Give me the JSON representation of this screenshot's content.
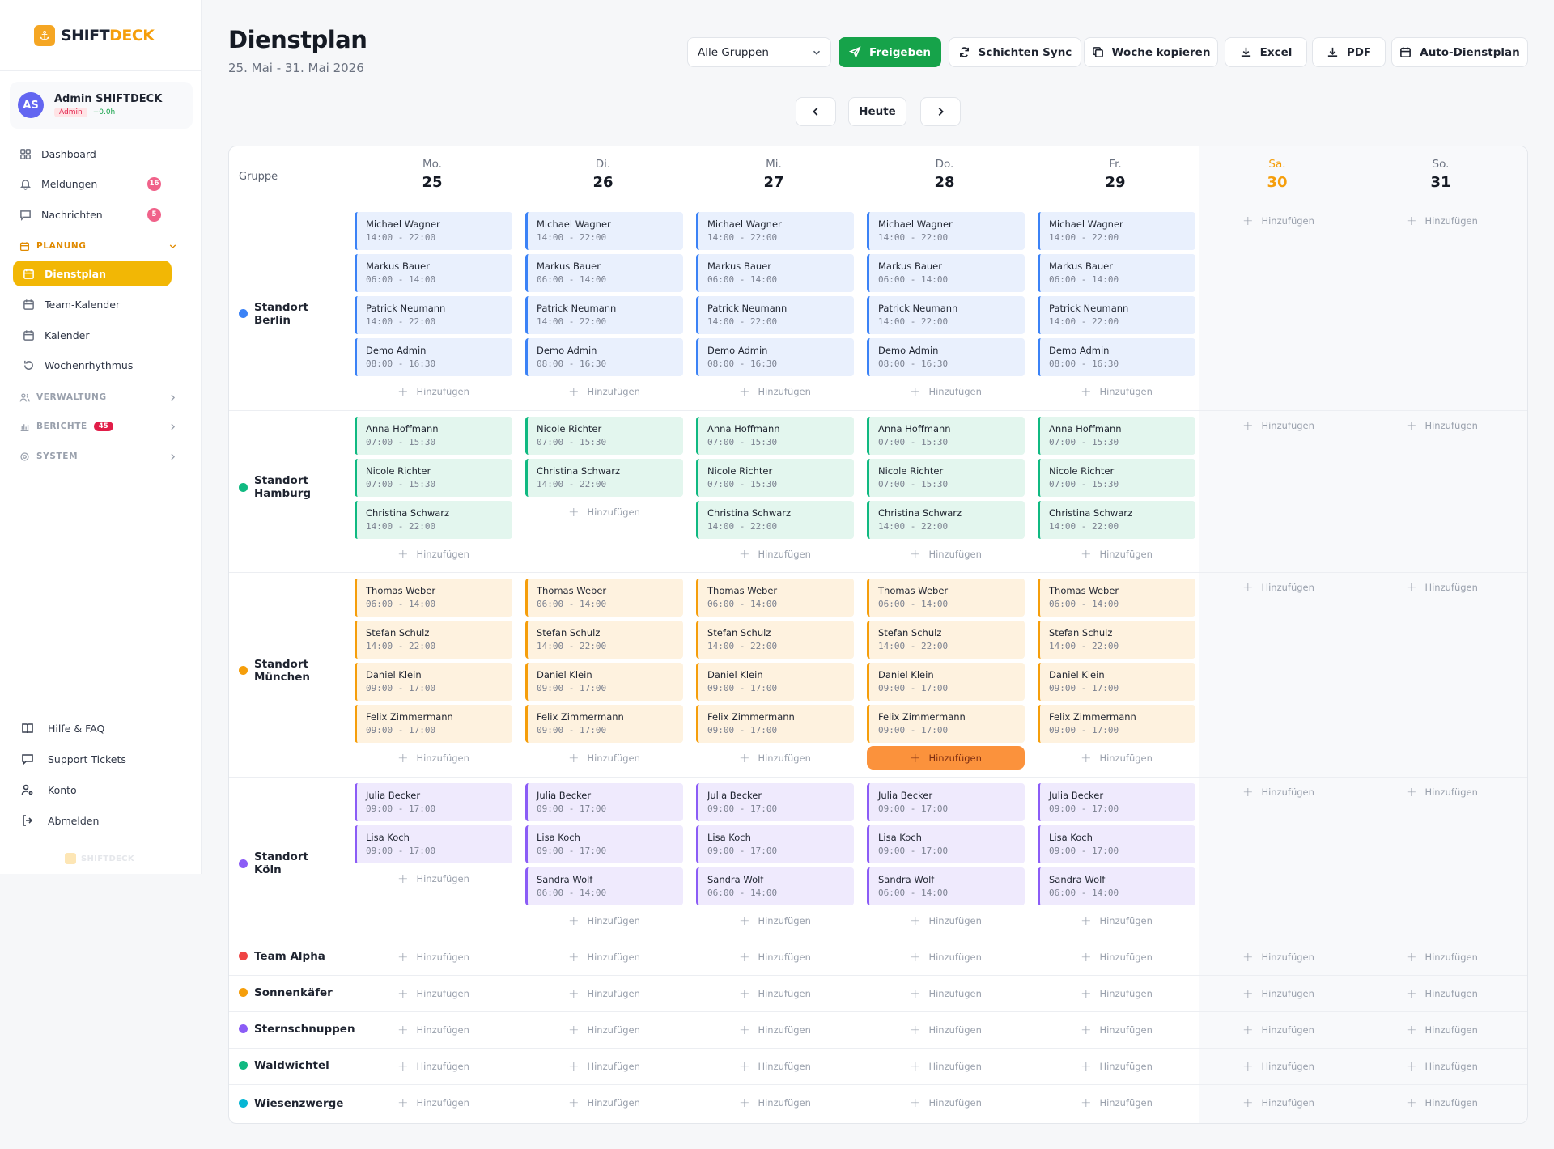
{
  "app": {
    "name_a": "SHIFT",
    "name_b": "DECK",
    "footer": "SHIFTDECK"
  },
  "user": {
    "initials": "AS",
    "name": "Admin SHIFTDECK",
    "role": "Admin",
    "hours": "+0.0h"
  },
  "nav": {
    "dashboard": "Dashboard",
    "meldungen": "Meldungen",
    "meldungen_count": "16",
    "nachrichten": "Nachrichten",
    "nachrichten_count": "5",
    "planung": "PLANUNG",
    "dienstplan": "Dienstplan",
    "team_kalender": "Team-Kalender",
    "kalender": "Kalender",
    "wochenrhythmus": "Wochenrhythmus",
    "verwaltung": "VERWALTUNG",
    "berichte": "BERICHTE",
    "berichte_count": "45",
    "system": "SYSTEM",
    "hilfe": "Hilfe & FAQ",
    "support": "Support Tickets",
    "konto": "Konto",
    "abmelden": "Abmelden"
  },
  "header": {
    "title": "Dienstplan",
    "subtitle": "25. Mai - 31. Mai 2026"
  },
  "toolbar": {
    "group_select": "Alle Gruppen",
    "freigeben": "Freigeben",
    "sync": "Schichten Sync",
    "copy_week": "Woche kopieren",
    "excel": "Excel",
    "pdf": "PDF",
    "auto": "Auto-Dienstplan",
    "today": "Heute"
  },
  "colors": {
    "accent": "#f2b705",
    "primary_green": "#16a34a",
    "weekend_day": "#f59e0b"
  },
  "grid": {
    "group_header": "Gruppe",
    "add_label": "Hinzufügen",
    "days": [
      {
        "name": "Mo.",
        "num": "25"
      },
      {
        "name": "Di.",
        "num": "26"
      },
      {
        "name": "Mi.",
        "num": "27"
      },
      {
        "name": "Do.",
        "num": "28"
      },
      {
        "name": "Fr.",
        "num": "29"
      },
      {
        "name": "Sa.",
        "num": "30"
      },
      {
        "name": "So.",
        "num": "31"
      }
    ],
    "groups": [
      {
        "name": "Standort Berlin",
        "dot": "#3b82f6",
        "bg": "#e9f0fd",
        "bar": "#3b82f6",
        "days": [
          [
            [
              "Michael Wagner",
              "14:00 - 22:00"
            ],
            [
              "Markus Bauer",
              "06:00 - 14:00"
            ],
            [
              "Patrick Neumann",
              "14:00 - 22:00"
            ],
            [
              "Demo Admin",
              "08:00 - 16:30"
            ]
          ],
          [
            [
              "Michael Wagner",
              "14:00 - 22:00"
            ],
            [
              "Markus Bauer",
              "06:00 - 14:00"
            ],
            [
              "Patrick Neumann",
              "14:00 - 22:00"
            ],
            [
              "Demo Admin",
              "08:00 - 16:30"
            ]
          ],
          [
            [
              "Michael Wagner",
              "14:00 - 22:00"
            ],
            [
              "Markus Bauer",
              "06:00 - 14:00"
            ],
            [
              "Patrick Neumann",
              "14:00 - 22:00"
            ],
            [
              "Demo Admin",
              "08:00 - 16:30"
            ]
          ],
          [
            [
              "Michael Wagner",
              "14:00 - 22:00"
            ],
            [
              "Markus Bauer",
              "06:00 - 14:00"
            ],
            [
              "Patrick Neumann",
              "14:00 - 22:00"
            ],
            [
              "Demo Admin",
              "08:00 - 16:30"
            ]
          ],
          [
            [
              "Michael Wagner",
              "14:00 - 22:00"
            ],
            [
              "Markus Bauer",
              "06:00 - 14:00"
            ],
            [
              "Patrick Neumann",
              "14:00 - 22:00"
            ],
            [
              "Demo Admin",
              "08:00 - 16:30"
            ]
          ],
          [],
          []
        ]
      },
      {
        "name": "Standort Hamburg",
        "dot": "#10b981",
        "bg": "#e3f6ee",
        "bar": "#10b981",
        "days": [
          [
            [
              "Anna Hoffmann",
              "07:00 - 15:30"
            ],
            [
              "Nicole Richter",
              "07:00 - 15:30"
            ],
            [
              "Christina Schwarz",
              "14:00 - 22:00"
            ]
          ],
          [
            [
              "Nicole Richter",
              "07:00 - 15:30"
            ],
            [
              "Christina Schwarz",
              "14:00 - 22:00"
            ]
          ],
          [
            [
              "Anna Hoffmann",
              "07:00 - 15:30"
            ],
            [
              "Nicole Richter",
              "07:00 - 15:30"
            ],
            [
              "Christina Schwarz",
              "14:00 - 22:00"
            ]
          ],
          [
            [
              "Anna Hoffmann",
              "07:00 - 15:30"
            ],
            [
              "Nicole Richter",
              "07:00 - 15:30"
            ],
            [
              "Christina Schwarz",
              "14:00 - 22:00"
            ]
          ],
          [
            [
              "Anna Hoffmann",
              "07:00 - 15:30"
            ],
            [
              "Nicole Richter",
              "07:00 - 15:30"
            ],
            [
              "Christina Schwarz",
              "14:00 - 22:00"
            ]
          ],
          [],
          []
        ]
      },
      {
        "name": "Standort München",
        "dot": "#f59e0b",
        "bg": "#fef2df",
        "bar": "#f59e0b",
        "days": [
          [
            [
              "Thomas Weber",
              "06:00 - 14:00"
            ],
            [
              "Stefan Schulz",
              "14:00 - 22:00"
            ],
            [
              "Daniel Klein",
              "09:00 - 17:00"
            ],
            [
              "Felix Zimmermann",
              "09:00 - 17:00"
            ]
          ],
          [
            [
              "Thomas Weber",
              "06:00 - 14:00"
            ],
            [
              "Stefan Schulz",
              "14:00 - 22:00"
            ],
            [
              "Daniel Klein",
              "09:00 - 17:00"
            ],
            [
              "Felix Zimmermann",
              "09:00 - 17:00"
            ]
          ],
          [
            [
              "Thomas Weber",
              "06:00 - 14:00"
            ],
            [
              "Stefan Schulz",
              "14:00 - 22:00"
            ],
            [
              "Daniel Klein",
              "09:00 - 17:00"
            ],
            [
              "Felix Zimmermann",
              "09:00 - 17:00"
            ]
          ],
          [
            [
              "Thomas Weber",
              "06:00 - 14:00"
            ],
            [
              "Stefan Schulz",
              "14:00 - 22:00"
            ],
            [
              "Daniel Klein",
              "09:00 - 17:00"
            ],
            [
              "Felix Zimmermann",
              "09:00 - 17:00"
            ]
          ],
          [
            [
              "Thomas Weber",
              "06:00 - 14:00"
            ],
            [
              "Stefan Schulz",
              "14:00 - 22:00"
            ],
            [
              "Daniel Klein",
              "09:00 - 17:00"
            ],
            [
              "Felix Zimmermann",
              "09:00 - 17:00"
            ]
          ],
          [],
          []
        ]
      },
      {
        "name": "Standort Köln",
        "dot": "#8b5cf6",
        "bg": "#efeafd",
        "bar": "#8b5cf6",
        "days": [
          [
            [
              "Julia Becker",
              "09:00 - 17:00"
            ],
            [
              "Lisa Koch",
              "09:00 - 17:00"
            ]
          ],
          [
            [
              "Julia Becker",
              "09:00 - 17:00"
            ],
            [
              "Lisa Koch",
              "09:00 - 17:00"
            ],
            [
              "Sandra Wolf",
              "06:00 - 14:00"
            ]
          ],
          [
            [
              "Julia Becker",
              "09:00 - 17:00"
            ],
            [
              "Lisa Koch",
              "09:00 - 17:00"
            ],
            [
              "Sandra Wolf",
              "06:00 - 14:00"
            ]
          ],
          [
            [
              "Julia Becker",
              "09:00 - 17:00"
            ],
            [
              "Lisa Koch",
              "09:00 - 17:00"
            ],
            [
              "Sandra Wolf",
              "06:00 - 14:00"
            ]
          ],
          [
            [
              "Julia Becker",
              "09:00 - 17:00"
            ],
            [
              "Lisa Koch",
              "09:00 - 17:00"
            ],
            [
              "Sandra Wolf",
              "06:00 - 14:00"
            ]
          ],
          [],
          []
        ]
      },
      {
        "name": "Team Alpha",
        "dot": "#ef4444",
        "days": [
          [],
          [],
          [],
          [],
          [],
          [],
          []
        ]
      },
      {
        "name": "Sonnenkäfer",
        "dot": "#f59e0b",
        "days": [
          [],
          [],
          [],
          [],
          [],
          [],
          []
        ]
      },
      {
        "name": "Sternschnuppen",
        "dot": "#8b5cf6",
        "days": [
          [],
          [],
          [],
          [],
          [],
          [],
          []
        ]
      },
      {
        "name": "Waldwichtel",
        "dot": "#10b981",
        "days": [
          [],
          [],
          [],
          [],
          [],
          [],
          []
        ]
      },
      {
        "name": "Wiesenzwerge",
        "dot": "#06b6d4",
        "days": [
          [],
          [],
          [],
          [],
          [],
          [],
          []
        ]
      }
    ]
  }
}
